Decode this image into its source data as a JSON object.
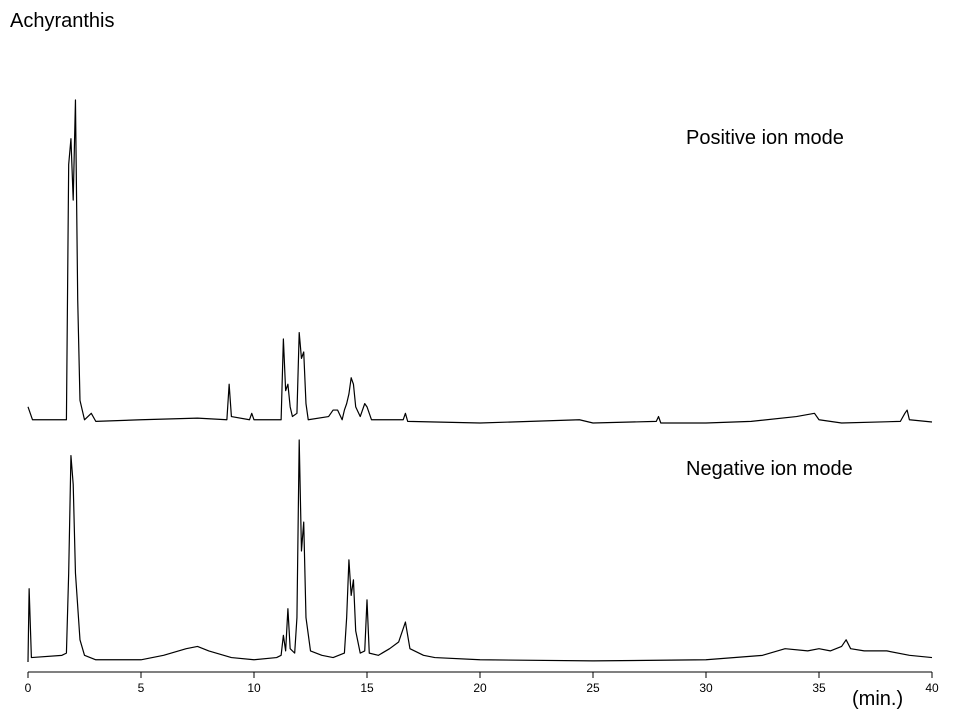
{
  "chart_data": [
    {
      "type": "line",
      "title": "Achyranthis",
      "annotation": "Positive ion mode",
      "color": "#000000",
      "xlim": [
        0,
        40
      ],
      "ylim": [
        0,
        100
      ],
      "x": [
        0,
        0.2,
        1.5,
        1.7,
        1.8,
        1.9,
        2.0,
        2.1,
        2.2,
        2.3,
        2.5,
        2.8,
        3.0,
        5,
        7.5,
        8.8,
        8.9,
        9.0,
        9.8,
        9.9,
        10,
        11.2,
        11.3,
        11.4,
        11.5,
        11.6,
        11.7,
        11.9,
        12.0,
        12.1,
        12.2,
        12.3,
        12.4,
        13.3,
        13.5,
        13.7,
        13.9,
        14.0,
        14.1,
        14.2,
        14.3,
        14.4,
        14.5,
        14.7,
        14.9,
        15.0,
        15.2,
        16.6,
        16.7,
        16.8,
        20,
        24.4,
        25,
        27.8,
        27.9,
        28,
        30,
        32,
        34,
        34.8,
        35,
        36,
        38.6,
        38.8,
        38.9,
        39,
        40
      ],
      "values": [
        5,
        1,
        1,
        1,
        80,
        88,
        69,
        100,
        38,
        7,
        1,
        3,
        0.5,
        1,
        1.5,
        1,
        12,
        2,
        1,
        3,
        1,
        1,
        26,
        10,
        12,
        5,
        2,
        3,
        28,
        20,
        22,
        6,
        1,
        2,
        4,
        4,
        1,
        4,
        6,
        9,
        14,
        12,
        5,
        2,
        6,
        5,
        1,
        1,
        3,
        0.5,
        0,
        1,
        0,
        0.5,
        2,
        0,
        0,
        0.5,
        2,
        3,
        1,
        0,
        0.5,
        3,
        4,
        1,
        0.3
      ]
    },
    {
      "type": "line",
      "annotation": "Negative ion mode",
      "color": "#000000",
      "xlabel": "(min.)",
      "xlim": [
        0,
        40
      ],
      "ylim": [
        0,
        100
      ],
      "xticks": [
        0,
        5,
        10,
        15,
        20,
        25,
        30,
        35,
        40
      ],
      "x": [
        0,
        0.05,
        0.15,
        1.5,
        1.7,
        1.8,
        1.9,
        2.0,
        2.1,
        2.3,
        2.5,
        3,
        5,
        6,
        7,
        7.5,
        8,
        9,
        10,
        11,
        11.2,
        11.3,
        11.4,
        11.5,
        11.6,
        11.8,
        11.9,
        12.0,
        12.1,
        12.2,
        12.3,
        12.5,
        13,
        13.5,
        14.0,
        14.1,
        14.2,
        14.3,
        14.4,
        14.5,
        14.7,
        14.9,
        15.0,
        15.1,
        15.5,
        16.0,
        16.4,
        16.7,
        16.9,
        17.5,
        18,
        20,
        25,
        30,
        32.5,
        33.5,
        34.5,
        35,
        35.5,
        36,
        36.2,
        36.4,
        37,
        38,
        39,
        40
      ],
      "values": [
        0,
        33,
        2,
        3,
        4,
        40,
        93,
        80,
        40,
        10,
        3,
        1,
        1,
        3,
        6,
        7,
        5,
        2,
        1,
        2,
        3,
        12,
        5,
        24,
        6,
        4,
        20,
        100,
        50,
        63,
        20,
        5,
        3,
        2,
        4,
        20,
        46,
        30,
        37,
        14,
        4,
        5,
        28,
        4,
        3,
        6,
        9,
        18,
        6,
        3,
        2,
        1,
        0.5,
        1,
        3,
        6,
        5,
        6,
        5,
        7,
        10,
        6,
        5,
        5,
        3,
        2
      ]
    }
  ]
}
